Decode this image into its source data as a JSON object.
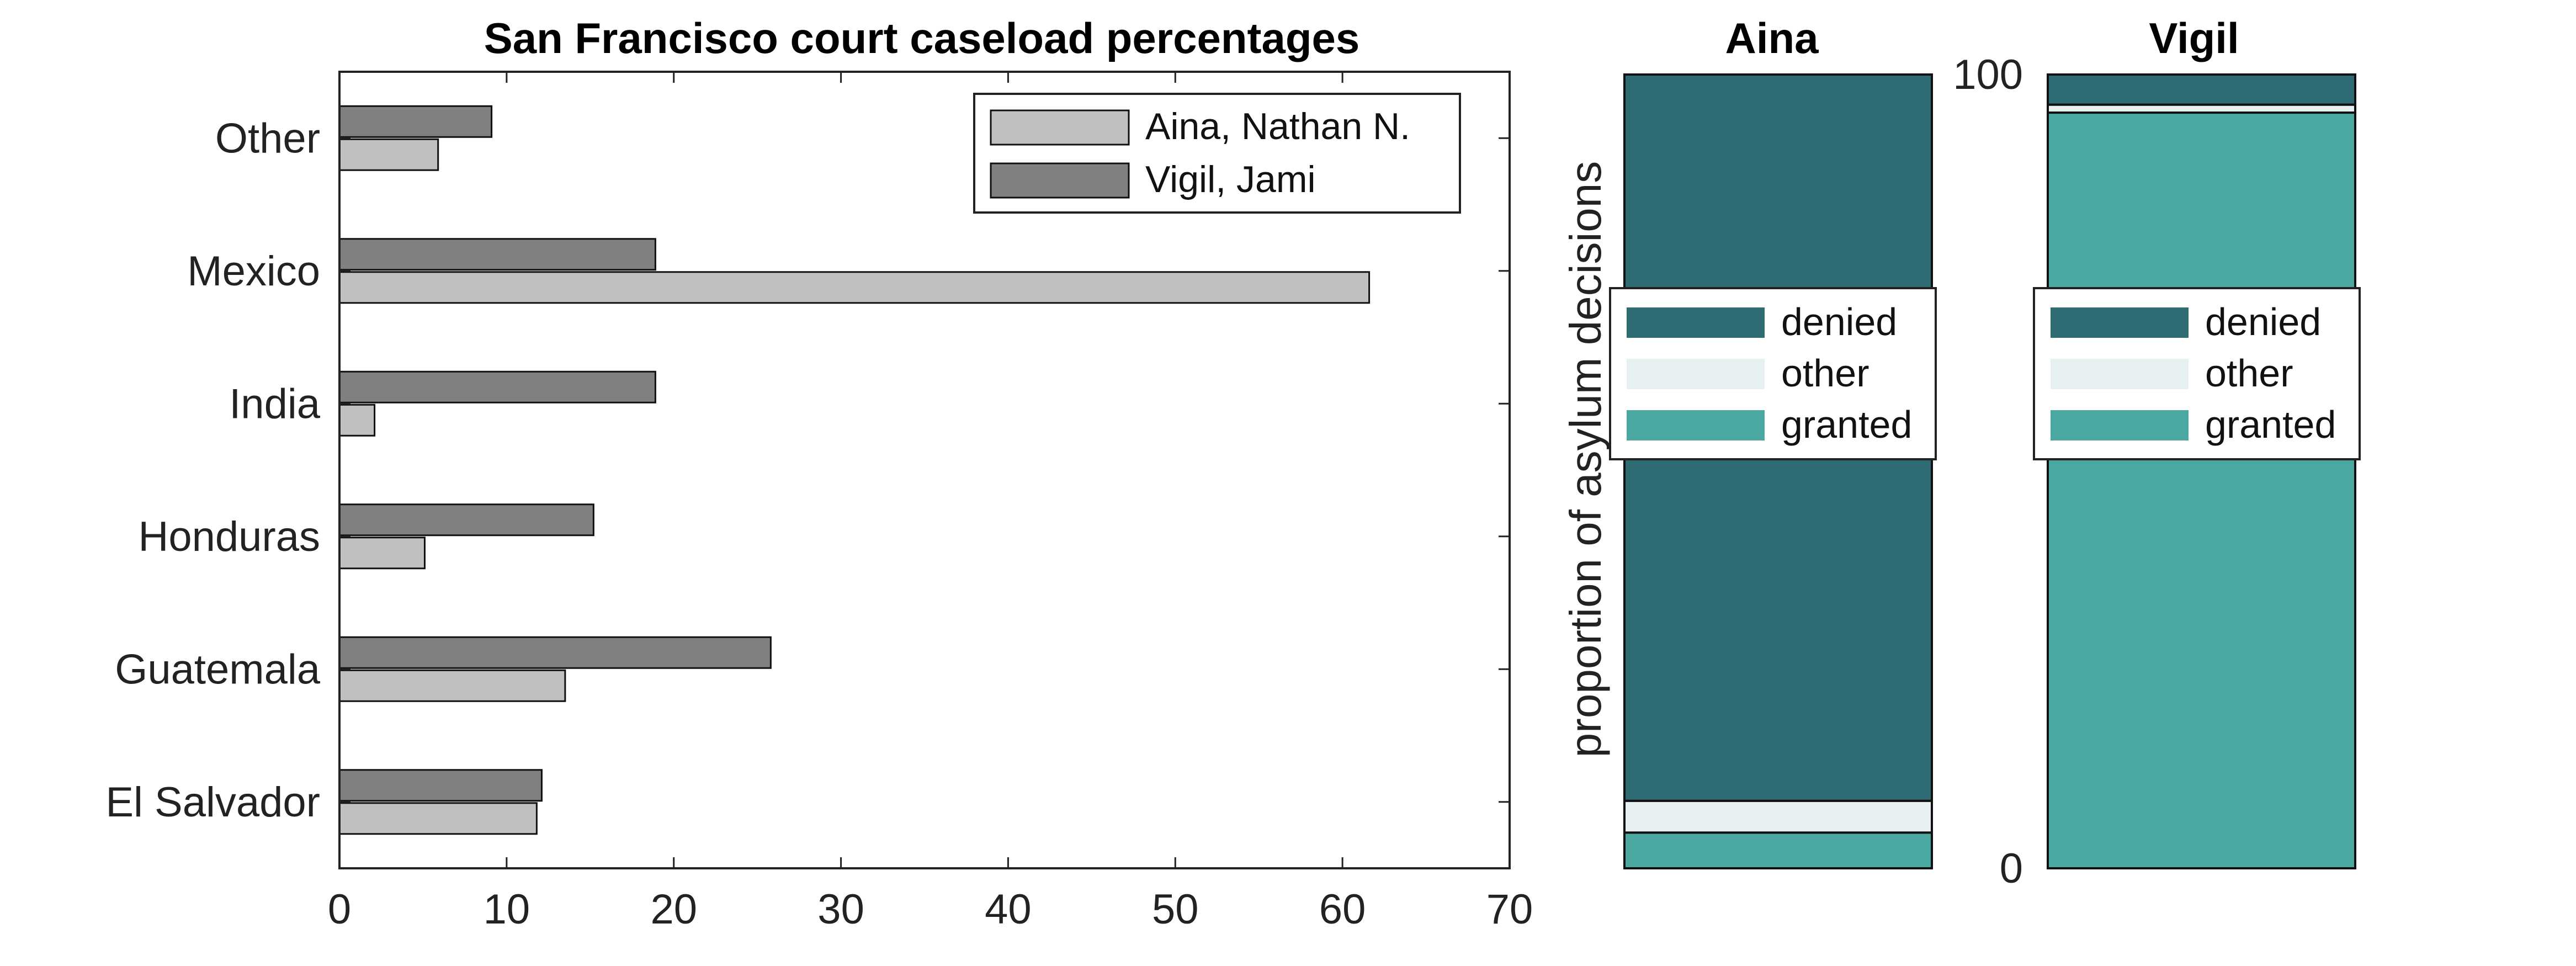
{
  "chart_data": [
    {
      "type": "bar",
      "orientation": "horizontal",
      "title": "San Francisco court caseload percentages",
      "categories": [
        "El Salvador",
        "Guatemala",
        "Honduras",
        "India",
        "Mexico",
        "Other"
      ],
      "series": [
        {
          "name": "Aina, Nathan N.",
          "values": [
            11.8,
            13.5,
            5.1,
            2.1,
            61.6,
            5.9
          ],
          "color": "#c0c0c0"
        },
        {
          "name": "Vigil, Jami",
          "values": [
            12.1,
            25.8,
            15.2,
            18.9,
            18.9,
            9.1
          ],
          "color": "#808080"
        }
      ],
      "xlim": [
        0,
        70
      ],
      "xticks": [
        0,
        10,
        20,
        30,
        40,
        50,
        60,
        70
      ],
      "legend_position": "top-right"
    },
    {
      "type": "bar",
      "stacked": true,
      "title": "Aina",
      "ylabel": "proportion of asylum decisions",
      "ylim": [
        0,
        100
      ],
      "segments": [
        {
          "name": "granted",
          "value": 4.5,
          "color": "#4aa8a0"
        },
        {
          "name": "other",
          "value": 4.0,
          "color": "#e6f0f0"
        },
        {
          "name": "denied",
          "value": 91.5,
          "color": "#2e6b73"
        }
      ],
      "legend": [
        "denied",
        "other",
        "granted"
      ],
      "legend_position": "upper-middle"
    },
    {
      "type": "bar",
      "stacked": true,
      "title": "Vigil",
      "ylim": [
        0,
        100
      ],
      "yticks": [
        0,
        100
      ],
      "segments": [
        {
          "name": "granted",
          "value": 95.2,
          "color": "#4aa8a0"
        },
        {
          "name": "other",
          "value": 1.0,
          "color": "#e6f0f0"
        },
        {
          "name": "denied",
          "value": 3.8,
          "color": "#2e6b73"
        }
      ],
      "legend": [
        "denied",
        "other",
        "granted"
      ],
      "legend_position": "upper-middle"
    }
  ]
}
